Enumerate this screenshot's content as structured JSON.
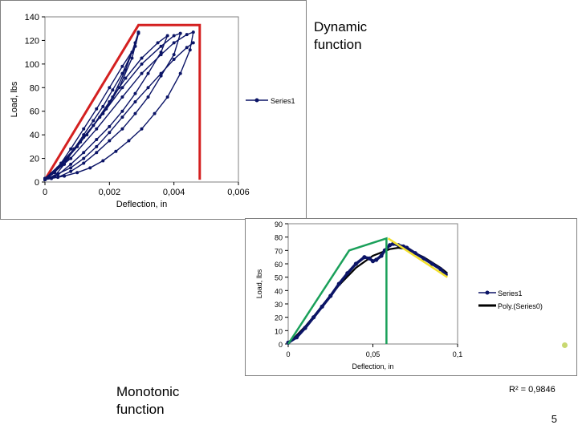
{
  "colors": {
    "series": "#0b1466",
    "envelope": "#d42020",
    "green": "#1aa05a",
    "yellow": "#f2e02c",
    "poly": "#000000"
  },
  "labels": {
    "dynamic_title": "Dynamic function",
    "monotonic_title": "Monotonic function",
    "page_number": "5",
    "r_squared": "R² = 0,9846"
  },
  "chart_data": [
    {
      "type": "line",
      "xlabel": "Deflection, in",
      "ylabel": "Load, lbs",
      "xlim": [
        0,
        0.006
      ],
      "ylim": [
        0,
        140
      ],
      "x_ticks": [
        "0",
        "0,002",
        "0,004",
        "0,006"
      ],
      "y_ticks": [
        "0",
        "20",
        "40",
        "60",
        "80",
        "100",
        "120",
        "140"
      ],
      "legend": {
        "placement": "right",
        "entries": [
          "Series1"
        ]
      },
      "series": [
        {
          "name": "Series1",
          "loops": [
            [
              [
                0,
                2
              ],
              [
                0.0003,
                5
              ],
              [
                0.0006,
                15
              ],
              [
                0.0009,
                28
              ],
              [
                0.0012,
                40
              ],
              [
                0.0015,
                52
              ],
              [
                0.0018,
                64
              ],
              [
                0.0021,
                78
              ],
              [
                0.0024,
                92
              ],
              [
                0.0027,
                110
              ],
              [
                0.0029,
                127
              ],
              [
                0.0028,
                118
              ],
              [
                0.0025,
                95
              ],
              [
                0.0021,
                72
              ],
              [
                0.0017,
                55
              ],
              [
                0.0013,
                40
              ],
              [
                0.0009,
                28
              ],
              [
                0.0005,
                16
              ],
              [
                0.0002,
                7
              ],
              [
                0,
                2
              ]
            ],
            [
              [
                0,
                2
              ],
              [
                0.0004,
                12
              ],
              [
                0.0008,
                28
              ],
              [
                0.0012,
                45
              ],
              [
                0.0016,
                62
              ],
              [
                0.002,
                80
              ],
              [
                0.0024,
                98
              ],
              [
                0.0028,
                115
              ],
              [
                0.0029,
                126
              ],
              [
                0.0027,
                105
              ],
              [
                0.0023,
                80
              ],
              [
                0.0019,
                62
              ],
              [
                0.0015,
                48
              ],
              [
                0.0011,
                34
              ],
              [
                0.0007,
                20
              ],
              [
                0.0003,
                8
              ],
              [
                0,
                2
              ]
            ],
            [
              [
                0,
                3
              ],
              [
                0.0005,
                14
              ],
              [
                0.001,
                30
              ],
              [
                0.0015,
                48
              ],
              [
                0.002,
                68
              ],
              [
                0.0025,
                88
              ],
              [
                0.003,
                105
              ],
              [
                0.0035,
                118
              ],
              [
                0.0038,
                124
              ],
              [
                0.0036,
                110
              ],
              [
                0.0032,
                92
              ],
              [
                0.0028,
                75
              ],
              [
                0.0024,
                60
              ],
              [
                0.002,
                47
              ],
              [
                0.0016,
                36
              ],
              [
                0.0012,
                25
              ],
              [
                0.0008,
                15
              ],
              [
                0.0004,
                6
              ],
              [
                0,
                3
              ]
            ],
            [
              [
                0,
                3
              ],
              [
                0.0006,
                18
              ],
              [
                0.0012,
                38
              ],
              [
                0.0018,
                58
              ],
              [
                0.0024,
                80
              ],
              [
                0.003,
                100
              ],
              [
                0.0036,
                115
              ],
              [
                0.004,
                124
              ],
              [
                0.0042,
                126
              ],
              [
                0.004,
                108
              ],
              [
                0.0036,
                90
              ],
              [
                0.0032,
                72
              ],
              [
                0.0028,
                58
              ],
              [
                0.0024,
                45
              ],
              [
                0.002,
                35
              ],
              [
                0.0016,
                25
              ],
              [
                0.0012,
                16
              ],
              [
                0.0008,
                9
              ],
              [
                0.0004,
                4
              ],
              [
                0,
                3
              ]
            ],
            [
              [
                0,
                2
              ],
              [
                0.0008,
                20
              ],
              [
                0.0016,
                45
              ],
              [
                0.0024,
                72
              ],
              [
                0.003,
                92
              ],
              [
                0.0036,
                108
              ],
              [
                0.004,
                118
              ],
              [
                0.0044,
                125
              ],
              [
                0.0046,
                127
              ],
              [
                0.0045,
                112
              ],
              [
                0.0042,
                92
              ],
              [
                0.0038,
                72
              ],
              [
                0.0034,
                58
              ],
              [
                0.003,
                45
              ],
              [
                0.0026,
                35
              ],
              [
                0.0022,
                26
              ],
              [
                0.0018,
                18
              ],
              [
                0.0014,
                12
              ],
              [
                0.001,
                8
              ],
              [
                0.0006,
                5
              ],
              [
                0.0002,
                3
              ],
              [
                0,
                2
              ]
            ],
            [
              [
                0,
                2
              ],
              [
                0.0004,
                7
              ],
              [
                0.0008,
                12
              ],
              [
                0.0012,
                20
              ],
              [
                0.0016,
                30
              ],
              [
                0.002,
                42
              ],
              [
                0.0024,
                55
              ],
              [
                0.0028,
                68
              ],
              [
                0.0032,
                80
              ],
              [
                0.0036,
                92
              ],
              [
                0.004,
                104
              ],
              [
                0.0044,
                114
              ],
              [
                0.0046,
                118
              ]
            ]
          ]
        }
      ],
      "envelope": [
        [
          0,
          2
        ],
        [
          0.0029,
          133
        ],
        [
          0.0048,
          133
        ],
        [
          0.0048,
          2
        ]
      ]
    },
    {
      "type": "line",
      "xlabel": "Deflection, in",
      "ylabel": "Load, lbs",
      "xlim": [
        0,
        0.1
      ],
      "ylim": [
        0,
        90
      ],
      "x_ticks": [
        "0",
        "0,05",
        "0,1"
      ],
      "y_ticks": [
        "0",
        "10",
        "20",
        "30",
        "40",
        "50",
        "60",
        "70",
        "80",
        "90"
      ],
      "legend": {
        "placement": "right",
        "entries": [
          "Series1",
          "Poly.(Series0)"
        ]
      },
      "series": [
        {
          "name": "Series1",
          "points": [
            [
              0,
              1
            ],
            [
              0.005,
              5
            ],
            [
              0.01,
              12
            ],
            [
              0.015,
              20
            ],
            [
              0.02,
              28
            ],
            [
              0.025,
              36
            ],
            [
              0.03,
              45
            ],
            [
              0.035,
              53
            ],
            [
              0.04,
              60
            ],
            [
              0.045,
              65
            ],
            [
              0.048,
              64
            ],
            [
              0.05,
              62
            ],
            [
              0.052,
              63
            ],
            [
              0.055,
              66
            ],
            [
              0.057,
              70
            ],
            [
              0.06,
              74
            ],
            [
              0.062,
              75
            ],
            [
              0.065,
              74
            ],
            [
              0.068,
              73
            ],
            [
              0.07,
              72
            ],
            [
              0.075,
              68
            ],
            [
              0.08,
              64
            ],
            [
              0.085,
              60
            ],
            [
              0.09,
              56
            ],
            [
              0.093,
              52
            ]
          ]
        },
        {
          "name": "Poly.(Series0)",
          "points": [
            [
              0,
              0
            ],
            [
              0.01,
              13
            ],
            [
              0.02,
              28
            ],
            [
              0.03,
              44
            ],
            [
              0.04,
              57
            ],
            [
              0.05,
              66
            ],
            [
              0.06,
              71
            ],
            [
              0.065,
              72
            ],
            [
              0.07,
              71
            ],
            [
              0.08,
              65
            ],
            [
              0.09,
              57
            ],
            [
              0.094,
              53
            ]
          ]
        }
      ],
      "green_lines": [
        [
          [
            0,
            0
          ],
          [
            0.036,
            70
          ],
          [
            0.058,
            79
          ],
          [
            0.058,
            0
          ]
        ]
      ],
      "yellow_line": [
        [
          0.059,
          79
        ],
        [
          0.094,
          50
        ]
      ]
    }
  ]
}
